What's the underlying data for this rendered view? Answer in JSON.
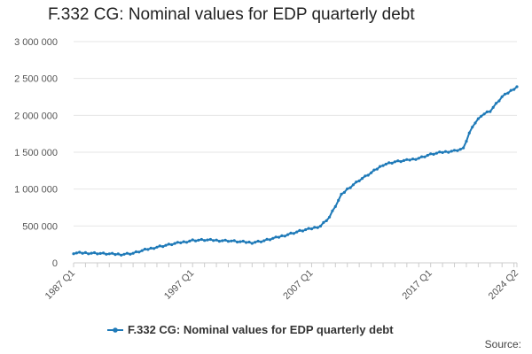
{
  "chart_data": {
    "type": "line",
    "title": "F.332 CG: Nominal values for EDP quarterly debt",
    "xlabel": "",
    "ylabel": "",
    "ylim": [
      0,
      3000000
    ],
    "y_ticks": [
      0,
      500000,
      1000000,
      1500000,
      2000000,
      2500000,
      3000000
    ],
    "y_tick_labels": [
      "0",
      "500 000",
      "1 000 000",
      "1 500 000",
      "2 000 000",
      "2 500 000",
      "3 000 000"
    ],
    "x_tick_labels": [
      "1987 Q1",
      "1997 Q1",
      "2007 Q1",
      "2017 Q1",
      "2024 Q2"
    ],
    "x_start": "1987 Q1",
    "x_end": "2024 Q2",
    "grid": true,
    "legend_position": "bottom",
    "color": "#1f7ab8",
    "series": [
      {
        "name": "F.332 CG: Nominal values for EDP quarterly debt",
        "keypoints": [
          [
            "1987 Q1",
            130000
          ],
          [
            "1988 Q1",
            135000
          ],
          [
            "1989 Q1",
            130000
          ],
          [
            "1990 Q1",
            120000
          ],
          [
            "1991 Q1",
            115000
          ],
          [
            "1992 Q1",
            130000
          ],
          [
            "1993 Q1",
            175000
          ],
          [
            "1994 Q1",
            215000
          ],
          [
            "1995 Q1",
            245000
          ],
          [
            "1996 Q1",
            275000
          ],
          [
            "1997 Q1",
            305000
          ],
          [
            "1998 Q1",
            310000
          ],
          [
            "1999 Q1",
            305000
          ],
          [
            "2000 Q1",
            300000
          ],
          [
            "2001 Q1",
            285000
          ],
          [
            "2002 Q1",
            275000
          ],
          [
            "2003 Q1",
            300000
          ],
          [
            "2004 Q1",
            340000
          ],
          [
            "2005 Q1",
            385000
          ],
          [
            "2006 Q1",
            430000
          ],
          [
            "2007 Q1",
            465000
          ],
          [
            "2007 Q4",
            500000
          ],
          [
            "2008 Q3",
            620000
          ],
          [
            "2009 Q1",
            770000
          ],
          [
            "2009 Q3",
            920000
          ],
          [
            "2010 Q1",
            1000000
          ],
          [
            "2011 Q1",
            1120000
          ],
          [
            "2012 Q1",
            1220000
          ],
          [
            "2013 Q1",
            1330000
          ],
          [
            "2014 Q1",
            1370000
          ],
          [
            "2015 Q1",
            1390000
          ],
          [
            "2016 Q1",
            1420000
          ],
          [
            "2017 Q1",
            1470000
          ],
          [
            "2018 Q1",
            1500000
          ],
          [
            "2019 Q1",
            1520000
          ],
          [
            "2019 Q4",
            1550000
          ],
          [
            "2020 Q2",
            1760000
          ],
          [
            "2020 Q4",
            1900000
          ],
          [
            "2021 Q2",
            2000000
          ],
          [
            "2022 Q1",
            2060000
          ],
          [
            "2023 Q1",
            2250000
          ],
          [
            "2024 Q2",
            2390000
          ]
        ]
      }
    ]
  },
  "legend": {
    "label": "F.332 CG: Nominal values for EDP quarterly debt"
  },
  "footer": {
    "source_label": "Source:"
  }
}
